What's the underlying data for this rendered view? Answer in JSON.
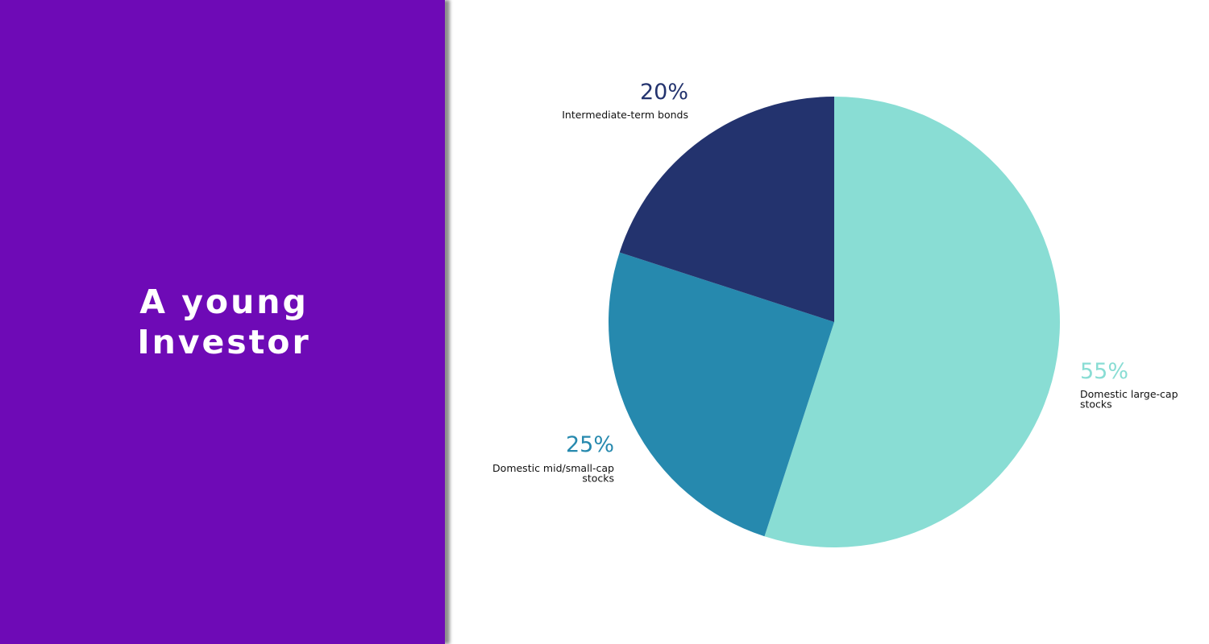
{
  "slide": {
    "title_line1": "A young",
    "title_line2": "Investor",
    "panel_color": "#6e0ab6"
  },
  "chart_data": {
    "type": "pie",
    "start_angle_deg": 0,
    "direction": "clockwise",
    "slices": [
      {
        "label_lines": [
          "Domestic large-cap",
          "stocks"
        ],
        "value": 55,
        "value_label": "55%",
        "color": "#89ddd4"
      },
      {
        "label_lines": [
          "Domestic mid/small-cap",
          "stocks"
        ],
        "value": 25,
        "value_label": "25%",
        "color": "#2689ae"
      },
      {
        "label_lines": [
          "Intermediate-term bonds"
        ],
        "value": 20,
        "value_label": "20%",
        "color": "#23336e"
      }
    ]
  }
}
